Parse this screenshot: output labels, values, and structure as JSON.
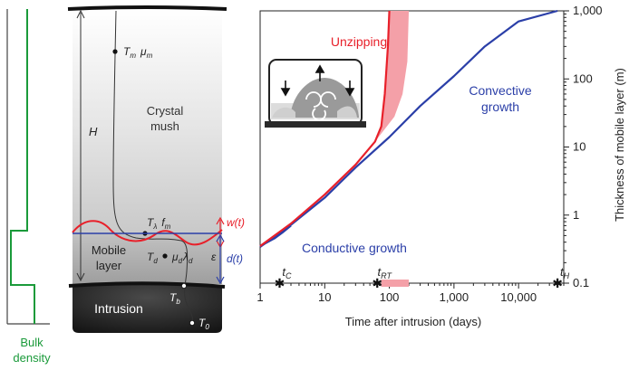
{
  "colors": {
    "density": "#1a9a3a",
    "unzip": "#e8202a",
    "unzip_fill": "#f4a0a8",
    "blue": "#2b3fa8",
    "axis": "#222222",
    "intrusion": "#2a2a2a"
  },
  "left_panel": {
    "density_label_1": "Bulk",
    "density_label_2": "density",
    "crystal_mush_1": "Crystal",
    "crystal_mush_2": "mush",
    "mobile_layer_1": "Mobile",
    "mobile_layer_2": "layer",
    "intrusion": "Intrusion",
    "H": "H",
    "Tm": "T",
    "Tm_sub": "m",
    "mu_m": "μ",
    "mu_m_sub": "m",
    "T_lambda": "T",
    "T_lambda_sub": "λ",
    "f_m": "f",
    "f_m_sub": "m",
    "T_d": "T",
    "T_d_sub": "d",
    "mu_d": "μ",
    "mu_d_sub": "d",
    "lambda_d": "λ",
    "lambda_d_sub": "d",
    "epsilon": "ε",
    "T_b": "T",
    "T_b_sub": "b",
    "T_0": "T",
    "T_0_sub": "0",
    "w_t": "w(t)",
    "d_t": "d(t)"
  },
  "inset_icon": "convection-cell-icon",
  "chart_data": {
    "type": "line",
    "xlabel": "Time after intrusion (days)",
    "ylabel": "Thickness of mobile layer (m)",
    "x_scale": "log",
    "y_scale": "log",
    "xlim": [
      1,
      50000
    ],
    "ylim": [
      0.1,
      1000
    ],
    "x_ticks": [
      1,
      10,
      100,
      1000,
      10000
    ],
    "x_tick_labels": [
      "1",
      "10",
      "100",
      "1,000",
      "10,000"
    ],
    "y_ticks": [
      0.1,
      1,
      10,
      100,
      1000
    ],
    "y_tick_labels": [
      "0.1",
      "1",
      "10",
      "100",
      "1,000"
    ],
    "y_axis_side": "right",
    "series": [
      {
        "name": "Conductive growth",
        "color": "#2b3fa8",
        "points": [
          [
            1,
            0.35
          ],
          [
            1.3,
            0.4
          ],
          [
            1.7,
            0.46
          ],
          [
            2.2,
            0.55
          ],
          [
            3,
            0.7
          ]
        ]
      },
      {
        "name": "Convective growth",
        "color": "#2b3fa8",
        "points": [
          [
            1,
            0.34
          ],
          [
            3,
            0.72
          ],
          [
            10,
            1.8
          ],
          [
            30,
            5
          ],
          [
            100,
            14
          ],
          [
            300,
            40
          ],
          [
            1000,
            110
          ],
          [
            3000,
            300
          ],
          [
            10000,
            700
          ],
          [
            40000,
            1700
          ]
        ]
      },
      {
        "name": "Unzipping",
        "color": "#e8202a",
        "points": [
          [
            1,
            0.35
          ],
          [
            3,
            0.75
          ],
          [
            10,
            2
          ],
          [
            30,
            5.5
          ],
          [
            60,
            12
          ],
          [
            75,
            20
          ],
          [
            85,
            60
          ],
          [
            95,
            300
          ],
          [
            100,
            2000
          ]
        ]
      }
    ],
    "unzipping_band": {
      "left": [
        [
          75,
          20
        ],
        [
          85,
          60
        ],
        [
          95,
          300
        ],
        [
          100,
          2000
        ]
      ],
      "right": [
        [
          60,
          12
        ],
        [
          120,
          28
        ],
        [
          160,
          60
        ],
        [
          190,
          180
        ],
        [
          200,
          2000
        ]
      ]
    },
    "markers": [
      {
        "label": "t",
        "sub": "C",
        "x": 2
      },
      {
        "label": "t",
        "sub": "RT",
        "x": 65
      },
      {
        "label": "t",
        "sub": "H",
        "x": 40000
      }
    ],
    "rt_band": [
      75,
      200
    ],
    "annotations": [
      "Unzipping",
      "Convective",
      "growth",
      "Conductive growth"
    ]
  }
}
